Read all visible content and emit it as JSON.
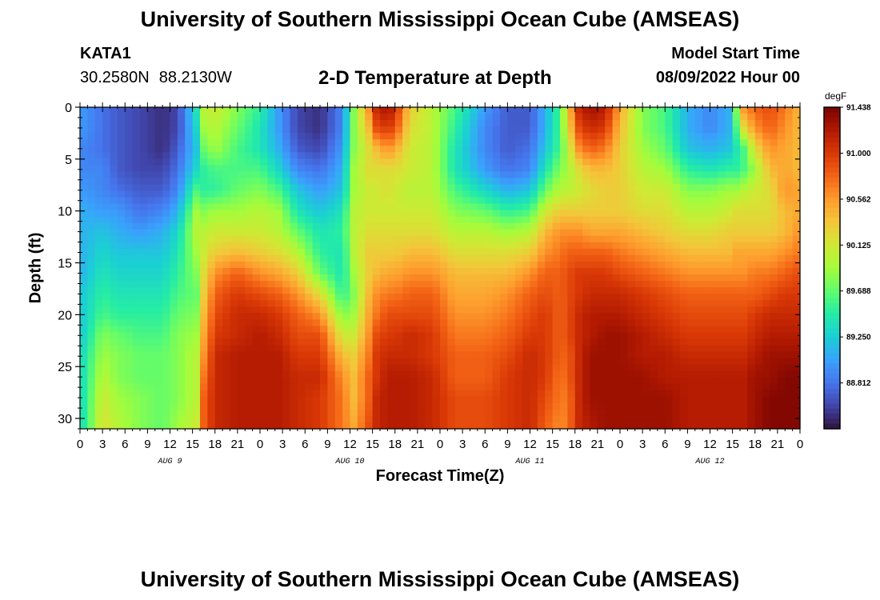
{
  "header": {
    "title": "University of Southern Mississippi Ocean Cube (AMSEAS)",
    "station": "KATA1",
    "lat": "30.2580N",
    "lon": "88.2130W",
    "subtitle": "2-D Temperature at Depth",
    "model_start_label": "Model Start Time",
    "model_start_value": "08/09/2022 Hour 00"
  },
  "footer": {
    "title": "University of Southern Mississippi Ocean Cube (AMSEAS)"
  },
  "chart_data": {
    "type": "heatmap",
    "xlabel": "Forecast Time(Z)",
    "ylabel": "Depth (ft)",
    "x_range_hours": [
      0,
      96
    ],
    "y_range_ft": [
      0,
      31
    ],
    "y_ticks": [
      "0",
      "5",
      "10",
      "15",
      "20",
      "25",
      "30"
    ],
    "x_tick_labels": [
      "0",
      "3",
      "6",
      "9",
      "12",
      "15",
      "18",
      "21",
      "0",
      "3",
      "6",
      "9",
      "12",
      "15",
      "18",
      "21",
      "0",
      "3",
      "6",
      "9",
      "12",
      "15",
      "18",
      "21",
      "0",
      "3",
      "6",
      "9",
      "12",
      "15",
      "18",
      "21",
      "0"
    ],
    "day_labels": [
      "AUG 9",
      "AUG 10",
      "AUG 11",
      "AUG 12"
    ],
    "colorbar": {
      "unit": "degF",
      "min": 88.375,
      "max": 91.438,
      "tick_labels": [
        "91.438",
        "91.000",
        "90.562",
        "90.125",
        "89.688",
        "89.250",
        "88.812"
      ],
      "colors": [
        "#30123b",
        "#4145ab",
        "#4675ed",
        "#39a2fc",
        "#1bcfd4",
        "#24eca6",
        "#61fc6c",
        "#a4fc3b",
        "#d1e834",
        "#f3c63a",
        "#fe9b2d",
        "#f36315",
        "#d93806",
        "#b11901",
        "#7a0402"
      ]
    },
    "hour_nodes": [
      0,
      3,
      5,
      8,
      11,
      13,
      15.5,
      16.5,
      18,
      21,
      24,
      26.5,
      29,
      32,
      35,
      36.5,
      38.5,
      39.5,
      41,
      42,
      44,
      47,
      50,
      54,
      57,
      60,
      62,
      64,
      65,
      66.5,
      68,
      70,
      72,
      75,
      78,
      81,
      84,
      86.5,
      87.5,
      88.5,
      90,
      92,
      94,
      96
    ],
    "depth_nodes": [
      0,
      2,
      4,
      6,
      8,
      10,
      12,
      14,
      16,
      18,
      20,
      22,
      24,
      26,
      28,
      31
    ],
    "temperature_degF": [
      [
        89.0,
        89.0,
        88.9,
        88.9,
        89.0,
        89.1,
        89.1,
        89.1,
        89.1,
        89.2,
        89.2,
        89.2,
        89.3,
        89.3,
        89.3,
        89.3
      ],
      [
        88.8,
        88.8,
        88.8,
        88.9,
        88.9,
        89.0,
        89.2,
        89.3,
        89.4,
        89.5,
        89.6,
        89.8,
        89.9,
        90.0,
        90.1,
        90.2
      ],
      [
        88.7,
        88.7,
        88.7,
        88.7,
        88.8,
        89.0,
        89.1,
        89.2,
        89.3,
        89.4,
        89.5,
        89.7,
        89.8,
        89.8,
        89.9,
        90.0
      ],
      [
        88.6,
        88.6,
        88.6,
        88.6,
        88.7,
        88.8,
        89.0,
        89.2,
        89.3,
        89.4,
        89.5,
        89.6,
        89.7,
        89.7,
        89.8,
        89.8
      ],
      [
        88.5,
        88.5,
        88.5,
        88.6,
        88.7,
        88.9,
        89.1,
        89.2,
        89.3,
        89.4,
        89.5,
        89.6,
        89.7,
        89.7,
        89.7,
        89.7
      ],
      [
        88.6,
        88.6,
        88.7,
        88.8,
        88.9,
        89.1,
        89.3,
        89.4,
        89.5,
        89.6,
        89.7,
        89.8,
        89.8,
        89.8,
        89.8,
        89.9
      ],
      [
        89.4,
        89.3,
        89.2,
        89.3,
        89.6,
        89.9,
        90.0,
        89.9,
        89.8,
        89.7,
        89.8,
        89.9,
        90.0,
        90.0,
        90.0,
        90.1
      ],
      [
        90.0,
        89.9,
        89.7,
        89.5,
        89.5,
        89.8,
        90.0,
        90.1,
        90.2,
        90.3,
        90.4,
        90.5,
        90.6,
        90.7,
        90.8,
        90.8
      ],
      [
        90.1,
        90.0,
        89.9,
        89.6,
        89.5,
        89.9,
        90.1,
        90.3,
        90.6,
        90.8,
        90.9,
        91.0,
        91.1,
        91.1,
        91.1,
        91.1
      ],
      [
        89.8,
        89.7,
        89.6,
        89.6,
        89.7,
        89.9,
        90.1,
        90.4,
        90.8,
        91.0,
        91.1,
        91.1,
        91.2,
        91.2,
        91.2,
        91.2
      ],
      [
        89.5,
        89.4,
        89.4,
        89.6,
        89.8,
        90.0,
        90.1,
        90.3,
        90.6,
        90.9,
        91.1,
        91.2,
        91.2,
        91.2,
        91.2,
        91.2
      ],
      [
        89.0,
        89.0,
        89.1,
        89.3,
        89.6,
        89.9,
        90.0,
        90.2,
        90.5,
        90.8,
        91.0,
        91.1,
        91.2,
        91.2,
        91.2,
        91.2
      ],
      [
        88.6,
        88.6,
        88.7,
        88.9,
        89.2,
        89.4,
        89.7,
        90.0,
        90.3,
        90.6,
        90.8,
        90.9,
        91.0,
        91.1,
        91.1,
        91.1
      ],
      [
        88.5,
        88.5,
        88.6,
        88.8,
        89.0,
        89.2,
        89.4,
        89.5,
        89.7,
        90.2,
        90.6,
        90.9,
        91.0,
        91.1,
        91.0,
        91.0
      ],
      [
        88.9,
        88.9,
        89.0,
        89.1,
        89.2,
        89.4,
        89.5,
        89.4,
        89.4,
        89.5,
        89.8,
        90.1,
        90.4,
        90.6,
        90.7,
        90.7
      ],
      [
        89.8,
        89.8,
        89.8,
        89.9,
        89.9,
        90.0,
        90.0,
        90.0,
        89.9,
        89.8,
        89.9,
        90.1,
        90.3,
        90.4,
        90.4,
        90.5
      ],
      [
        90.6,
        90.4,
        90.2,
        90.2,
        90.1,
        90.1,
        90.2,
        90.3,
        90.3,
        90.4,
        90.5,
        90.6,
        90.7,
        90.8,
        90.8,
        90.9
      ],
      [
        91.1,
        90.9,
        90.4,
        90.2,
        90.1,
        90.1,
        90.2,
        90.3,
        90.4,
        90.6,
        90.7,
        90.9,
        91.0,
        91.0,
        91.1,
        91.1
      ],
      [
        91.3,
        91.0,
        90.6,
        90.2,
        90.2,
        90.1,
        90.2,
        90.3,
        90.5,
        90.7,
        90.9,
        91.0,
        91.1,
        91.2,
        91.2,
        91.2
      ],
      [
        91.1,
        90.9,
        90.5,
        90.2,
        90.1,
        90.1,
        90.2,
        90.3,
        90.5,
        90.7,
        90.9,
        91.0,
        91.1,
        91.2,
        91.2,
        91.2
      ],
      [
        90.3,
        90.2,
        90.1,
        90.1,
        90.0,
        90.1,
        90.2,
        90.4,
        90.6,
        90.8,
        90.9,
        91.1,
        91.1,
        91.2,
        91.2,
        91.2
      ],
      [
        90.0,
        90.0,
        90.0,
        90.0,
        90.0,
        90.1,
        90.2,
        90.4,
        90.6,
        90.8,
        90.9,
        91.0,
        91.0,
        91.1,
        91.1,
        91.1
      ],
      [
        89.6,
        89.5,
        89.4,
        89.4,
        89.6,
        89.8,
        90.0,
        90.2,
        90.4,
        90.5,
        90.6,
        90.7,
        90.8,
        90.8,
        90.9,
        90.9
      ],
      [
        89.0,
        88.9,
        88.9,
        89.0,
        89.3,
        89.7,
        90.0,
        90.2,
        90.4,
        90.5,
        90.6,
        90.7,
        90.8,
        90.8,
        90.9,
        90.9
      ],
      [
        88.7,
        88.7,
        88.7,
        88.8,
        89.1,
        89.5,
        89.9,
        90.2,
        90.4,
        90.6,
        90.7,
        90.8,
        90.9,
        91.0,
        91.0,
        91.0
      ],
      [
        88.7,
        88.7,
        88.8,
        88.9,
        89.2,
        89.6,
        90.0,
        90.3,
        90.6,
        90.8,
        90.9,
        91.0,
        91.1,
        91.1,
        91.1,
        91.1
      ],
      [
        89.1,
        89.1,
        89.2,
        89.4,
        89.7,
        90.1,
        90.4,
        90.6,
        90.8,
        90.9,
        91.0,
        91.0,
        91.0,
        91.0,
        90.9,
        90.8
      ],
      [
        89.6,
        89.6,
        89.6,
        89.8,
        90.0,
        90.3,
        90.6,
        90.7,
        90.8,
        90.8,
        90.8,
        90.8,
        90.8,
        90.7,
        90.7,
        90.6
      ],
      [
        90.3,
        90.2,
        90.0,
        89.9,
        90.0,
        90.3,
        90.6,
        90.8,
        90.9,
        90.9,
        90.9,
        90.9,
        90.8,
        90.8,
        90.7,
        90.7
      ],
      [
        91.1,
        90.9,
        90.6,
        90.2,
        90.1,
        90.3,
        90.6,
        90.8,
        91.0,
        91.0,
        91.1,
        91.1,
        91.1,
        91.1,
        91.1,
        91.1
      ],
      [
        91.3,
        91.1,
        90.8,
        90.4,
        90.2,
        90.3,
        90.5,
        90.8,
        91.0,
        91.1,
        91.2,
        91.2,
        91.3,
        91.3,
        91.3,
        91.2
      ],
      [
        91.2,
        91.0,
        90.7,
        90.4,
        90.3,
        90.3,
        90.5,
        90.8,
        91.0,
        91.1,
        91.2,
        91.3,
        91.3,
        91.3,
        91.3,
        91.3
      ],
      [
        90.5,
        90.4,
        90.3,
        90.3,
        90.3,
        90.3,
        90.5,
        90.7,
        90.9,
        91.1,
        91.2,
        91.3,
        91.3,
        91.3,
        91.3,
        91.3
      ],
      [
        89.8,
        89.8,
        89.9,
        90.0,
        90.1,
        90.2,
        90.4,
        90.6,
        90.8,
        91.0,
        91.1,
        91.2,
        91.2,
        91.3,
        91.3,
        91.3
      ],
      [
        89.6,
        89.6,
        89.7,
        89.9,
        90.1,
        90.2,
        90.3,
        90.5,
        90.7,
        90.9,
        91.0,
        91.1,
        91.2,
        91.2,
        91.3,
        91.3
      ],
      [
        89.1,
        89.1,
        89.2,
        89.5,
        89.8,
        90.0,
        90.2,
        90.4,
        90.6,
        90.8,
        90.9,
        91.0,
        91.1,
        91.2,
        91.2,
        91.2
      ],
      [
        88.9,
        88.9,
        89.1,
        89.4,
        89.8,
        90.0,
        90.2,
        90.4,
        90.6,
        90.8,
        90.9,
        91.0,
        91.1,
        91.2,
        91.2,
        91.2
      ],
      [
        89.1,
        89.1,
        89.2,
        89.5,
        89.9,
        90.1,
        90.3,
        90.4,
        90.6,
        90.8,
        90.9,
        91.0,
        91.1,
        91.2,
        91.2,
        91.2
      ],
      [
        89.8,
        89.6,
        89.4,
        89.5,
        89.9,
        90.2,
        90.3,
        90.5,
        90.6,
        90.8,
        90.9,
        91.0,
        91.1,
        91.2,
        91.2,
        91.2
      ],
      [
        90.6,
        90.2,
        89.6,
        89.6,
        90.0,
        90.2,
        90.3,
        90.5,
        90.6,
        90.8,
        90.9,
        91.0,
        91.1,
        91.2,
        91.2,
        91.2
      ],
      [
        90.8,
        90.6,
        90.2,
        89.9,
        90.1,
        90.2,
        90.3,
        90.5,
        90.7,
        90.8,
        91.0,
        91.1,
        91.2,
        91.3,
        91.3,
        91.3
      ],
      [
        90.9,
        90.8,
        90.6,
        90.4,
        90.2,
        90.2,
        90.3,
        90.5,
        90.7,
        90.9,
        91.1,
        91.2,
        91.3,
        91.3,
        91.4,
        91.4
      ],
      [
        90.7,
        90.6,
        90.5,
        90.5,
        90.6,
        90.4,
        90.4,
        90.6,
        90.8,
        91.0,
        91.1,
        91.2,
        91.3,
        91.4,
        91.4,
        91.4
      ],
      [
        90.4,
        90.4,
        90.4,
        90.4,
        90.5,
        90.5,
        90.6,
        90.7,
        90.9,
        91.0,
        91.1,
        91.2,
        91.3,
        91.4,
        91.4,
        91.4
      ]
    ]
  }
}
